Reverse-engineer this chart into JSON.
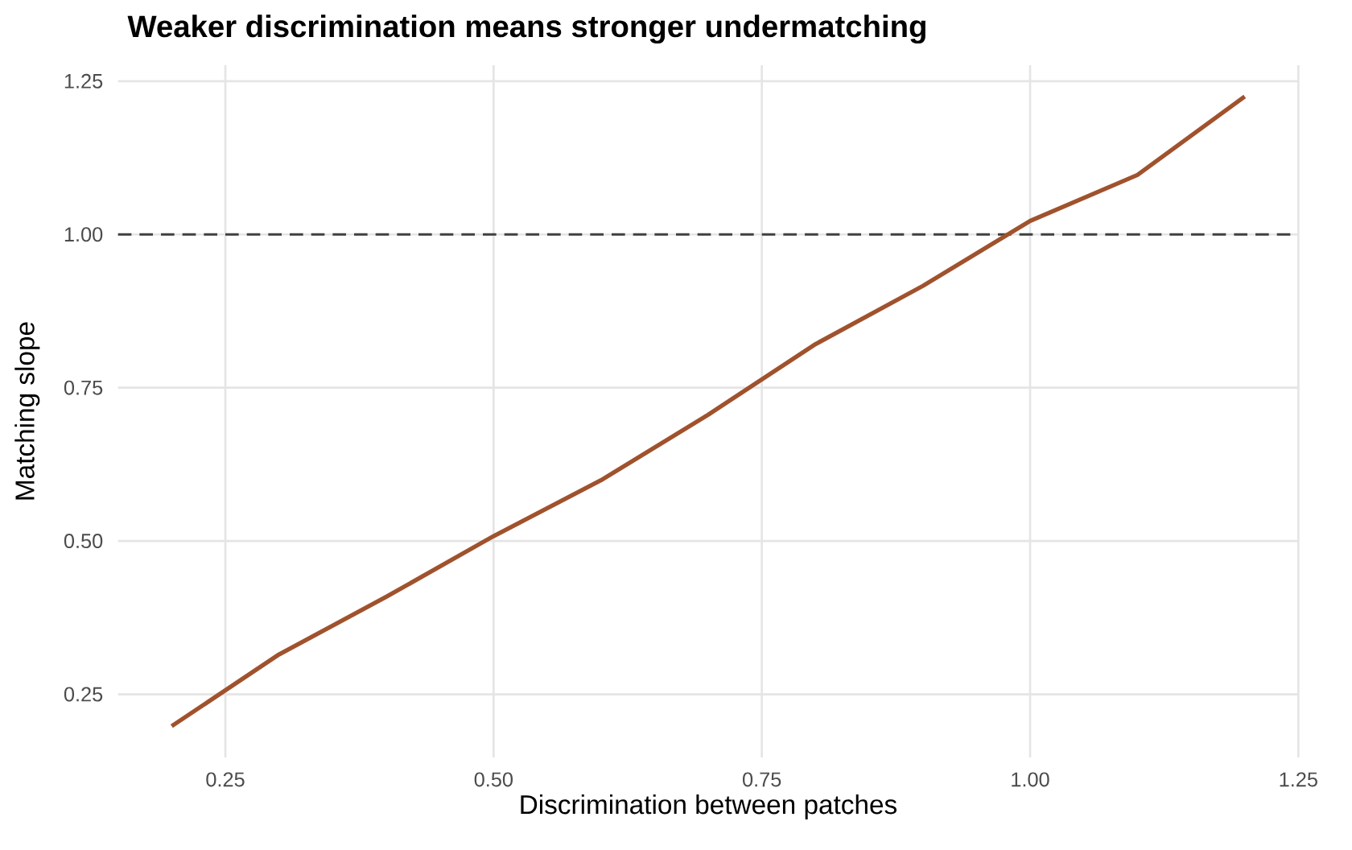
{
  "chart_data": {
    "type": "line",
    "title": "Weaker discrimination means stronger undermatching",
    "xlabel": "Discrimination between patches",
    "ylabel": "Matching slope",
    "x": [
      0.2,
      0.3,
      0.4,
      0.5,
      0.6,
      0.7,
      0.8,
      0.9,
      1.0,
      1.1,
      1.2
    ],
    "series": [
      {
        "color": "#a0522d",
        "values": [
          0.198,
          0.315,
          0.409,
          0.508,
          0.599,
          0.706,
          0.821,
          0.916,
          1.022,
          1.097,
          1.225
        ]
      }
    ],
    "xlim": [
      0.15,
      1.25
    ],
    "ylim": [
      0.147,
      1.276
    ],
    "xticks": [
      {
        "value": 0.25,
        "label": "0.25"
      },
      {
        "value": 0.5,
        "label": "0.50"
      },
      {
        "value": 0.75,
        "label": "0.75"
      },
      {
        "value": 1.0,
        "label": "1.00"
      },
      {
        "value": 1.25,
        "label": "1.25"
      }
    ],
    "yticks": [
      {
        "value": 0.25,
        "label": "0.25"
      },
      {
        "value": 0.5,
        "label": "0.50"
      },
      {
        "value": 0.75,
        "label": "0.75"
      },
      {
        "value": 1.0,
        "label": "1.00"
      },
      {
        "value": 1.25,
        "label": "1.25"
      }
    ],
    "ref_lines": [
      {
        "axis": "y",
        "value": 1.0,
        "color": "#404040",
        "line_style": "dashed"
      }
    ],
    "grid": true,
    "marker": "none",
    "line_style": "solid"
  }
}
